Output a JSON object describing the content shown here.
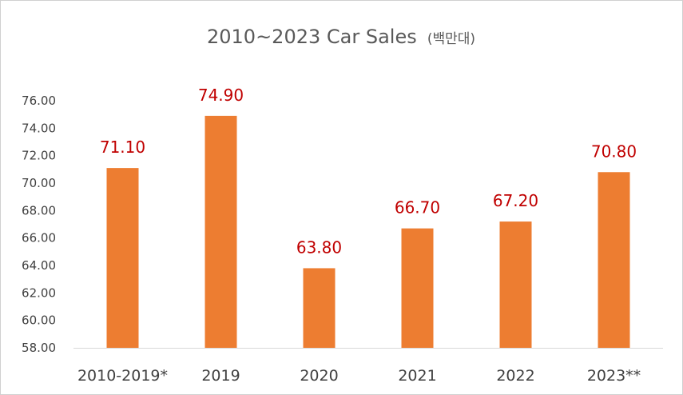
{
  "chart_data": {
    "type": "bar",
    "title": "2010~2023 Car Sales",
    "title_unit": "(백만대)",
    "categories": [
      "2010-2019*",
      "2019",
      "2020",
      "2021",
      "2022",
      "2023**"
    ],
    "values": [
      71.1,
      74.9,
      63.8,
      66.7,
      67.2,
      70.8
    ],
    "data_labels": [
      "71.10",
      "74.90",
      "63.80",
      "66.70",
      "67.20",
      "70.80"
    ],
    "yticks": [
      "58.00",
      "60.00",
      "62.00",
      "64.00",
      "66.00",
      "68.00",
      "70.00",
      "72.00",
      "74.00",
      "76.00"
    ],
    "ylim": [
      58,
      76
    ],
    "xlabel": "",
    "ylabel": "",
    "grid": false,
    "legend": "none",
    "colors": {
      "bar": "#ED7D31",
      "data_label": "#C00000",
      "axis": "#D9D9D9"
    }
  }
}
